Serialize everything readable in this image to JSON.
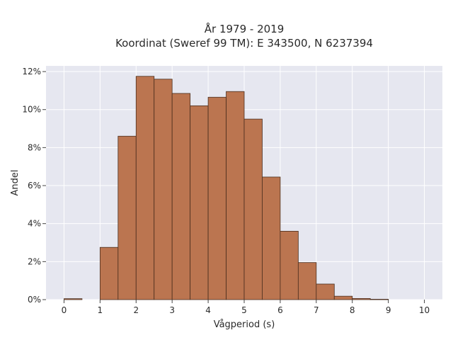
{
  "chart_data": {
    "type": "bar",
    "title_line1": "År 1979 - 2019",
    "title_line2": "Koordinat (Sweref 99 TM): E 343500, N 6237394",
    "xlabel": "Vågperiod (s)",
    "ylabel": "Andel",
    "xlim": [
      -0.5,
      10.5
    ],
    "ylim": [
      0,
      12.3
    ],
    "x_ticks": [
      0,
      1,
      2,
      3,
      4,
      5,
      6,
      7,
      8,
      9,
      10
    ],
    "x_tick_labels": [
      "0",
      "1",
      "2",
      "3",
      "4",
      "5",
      "6",
      "7",
      "8",
      "9",
      "10"
    ],
    "y_ticks": [
      0,
      2,
      4,
      6,
      8,
      10,
      12
    ],
    "y_tick_labels": [
      "0%",
      "2%",
      "4%",
      "6%",
      "8%",
      "10%",
      "12%"
    ],
    "bin_width": 0.5,
    "bins": [
      {
        "start": 0.0,
        "value": 0.05
      },
      {
        "start": 0.5,
        "value": 0
      },
      {
        "start": 1.0,
        "value": 2.75
      },
      {
        "start": 1.5,
        "value": 8.6
      },
      {
        "start": 2.0,
        "value": 11.75
      },
      {
        "start": 2.5,
        "value": 11.6
      },
      {
        "start": 3.0,
        "value": 10.85
      },
      {
        "start": 3.5,
        "value": 10.2
      },
      {
        "start": 4.0,
        "value": 10.65
      },
      {
        "start": 4.5,
        "value": 10.95
      },
      {
        "start": 5.0,
        "value": 9.5
      },
      {
        "start": 5.5,
        "value": 6.45
      },
      {
        "start": 6.0,
        "value": 3.6
      },
      {
        "start": 6.5,
        "value": 1.95
      },
      {
        "start": 7.0,
        "value": 0.82
      },
      {
        "start": 7.5,
        "value": 0.18
      },
      {
        "start": 8.0,
        "value": 0.06
      },
      {
        "start": 8.5,
        "value": 0.02
      }
    ],
    "grid": true,
    "colors": {
      "bar_fill": "#bb7550",
      "bar_edge": "#4a2e1e",
      "plot_bg": "#e6e7f0",
      "grid": "#ffffff"
    }
  }
}
